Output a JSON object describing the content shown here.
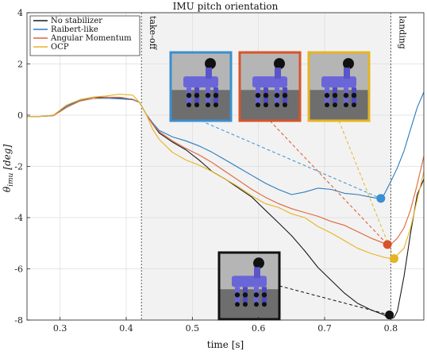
{
  "chart_data": {
    "type": "line",
    "title": "IMU pitch orientation",
    "xlabel": "time [s]",
    "ylabel": "θimu [deg]",
    "ylabel_main": "θ",
    "ylabel_sub": "imu",
    "ylabel_unit": "[deg]",
    "xlim": [
      0.25,
      0.85
    ],
    "ylim": [
      -8,
      4
    ],
    "xticks": [
      0.3,
      0.4,
      0.5,
      0.6,
      0.7,
      0.8
    ],
    "xtick_labels": [
      "0.3",
      "0.4",
      "0.5",
      "0.6",
      "0.7",
      "0.8"
    ],
    "yticks": [
      -8,
      -6,
      -4,
      -2,
      0,
      2,
      4
    ],
    "ytick_labels": [
      "-8",
      "-6",
      "-4",
      "-2",
      "0",
      "2",
      "4"
    ],
    "grid": true,
    "legend_position": "top-left",
    "flight_phase_shaded": true,
    "shaded_range": [
      0.423,
      0.8
    ],
    "events": [
      {
        "label": "take-off",
        "x": 0.423
      },
      {
        "label": "landing",
        "x": 0.8
      }
    ],
    "series": [
      {
        "name": "No stabilizer",
        "color": "#1a1a1a",
        "x": [
          0.25,
          0.27,
          0.29,
          0.31,
          0.33,
          0.35,
          0.37,
          0.39,
          0.41,
          0.42,
          0.43,
          0.44,
          0.45,
          0.47,
          0.49,
          0.51,
          0.53,
          0.55,
          0.57,
          0.59,
          0.61,
          0.63,
          0.65,
          0.67,
          0.69,
          0.71,
          0.73,
          0.75,
          0.77,
          0.79,
          0.795,
          0.8,
          0.805,
          0.81,
          0.82,
          0.83,
          0.84,
          0.85
        ],
        "y": [
          -0.05,
          -0.05,
          -0.02,
          0.35,
          0.6,
          0.7,
          0.7,
          0.68,
          0.62,
          0.5,
          0.05,
          -0.35,
          -0.7,
          -1.05,
          -1.35,
          -1.75,
          -2.2,
          -2.5,
          -2.85,
          -3.2,
          -3.7,
          -4.2,
          -4.7,
          -5.3,
          -5.95,
          -6.45,
          -6.95,
          -7.35,
          -7.6,
          -7.8,
          -7.9,
          -7.95,
          -7.9,
          -7.65,
          -6.3,
          -4.6,
          -3.1,
          -2.5
        ]
      },
      {
        "name": "Raibert-like",
        "color": "#2a7bbf",
        "x": [
          0.25,
          0.27,
          0.29,
          0.31,
          0.33,
          0.35,
          0.37,
          0.39,
          0.41,
          0.42,
          0.43,
          0.44,
          0.45,
          0.47,
          0.49,
          0.51,
          0.53,
          0.55,
          0.57,
          0.59,
          0.61,
          0.63,
          0.65,
          0.67,
          0.69,
          0.71,
          0.73,
          0.75,
          0.77,
          0.78,
          0.79,
          0.8,
          0.81,
          0.82,
          0.83,
          0.84,
          0.85
        ],
        "y": [
          -0.05,
          -0.05,
          0.0,
          0.35,
          0.58,
          0.65,
          0.66,
          0.64,
          0.6,
          0.5,
          0.05,
          -0.3,
          -0.6,
          -0.85,
          -1.0,
          -1.2,
          -1.45,
          -1.75,
          -2.05,
          -2.35,
          -2.65,
          -2.9,
          -3.1,
          -3.0,
          -2.85,
          -2.9,
          -3.05,
          -3.1,
          -3.2,
          -3.25,
          -3.1,
          -2.6,
          -2.05,
          -1.4,
          -0.55,
          0.3,
          0.9
        ]
      },
      {
        "name": "Angular Momentum",
        "color": "#e0653a",
        "x": [
          0.25,
          0.27,
          0.29,
          0.31,
          0.33,
          0.35,
          0.37,
          0.39,
          0.41,
          0.42,
          0.43,
          0.44,
          0.45,
          0.47,
          0.49,
          0.51,
          0.53,
          0.55,
          0.57,
          0.59,
          0.61,
          0.63,
          0.65,
          0.67,
          0.69,
          0.71,
          0.73,
          0.75,
          0.77,
          0.79,
          0.8,
          0.81,
          0.82,
          0.83,
          0.84,
          0.85
        ],
        "y": [
          -0.05,
          -0.05,
          -0.02,
          0.3,
          0.55,
          0.65,
          0.7,
          0.7,
          0.62,
          0.5,
          0.05,
          -0.35,
          -0.65,
          -1.0,
          -1.3,
          -1.55,
          -1.85,
          -2.2,
          -2.55,
          -2.9,
          -3.2,
          -3.45,
          -3.65,
          -3.8,
          -3.95,
          -4.15,
          -4.3,
          -4.55,
          -4.8,
          -5.0,
          -5.05,
          -4.8,
          -4.4,
          -3.7,
          -2.7,
          -1.6
        ]
      },
      {
        "name": "OCP",
        "color": "#e6b422",
        "x": [
          0.25,
          0.27,
          0.29,
          0.31,
          0.33,
          0.35,
          0.37,
          0.39,
          0.41,
          0.42,
          0.43,
          0.44,
          0.45,
          0.47,
          0.49,
          0.51,
          0.53,
          0.55,
          0.57,
          0.59,
          0.61,
          0.63,
          0.65,
          0.67,
          0.69,
          0.71,
          0.73,
          0.75,
          0.77,
          0.79,
          0.8,
          0.81,
          0.82,
          0.83,
          0.84,
          0.85
        ],
        "y": [
          -0.05,
          -0.05,
          0.0,
          0.4,
          0.6,
          0.7,
          0.75,
          0.82,
          0.78,
          0.5,
          0.05,
          -0.55,
          -0.95,
          -1.45,
          -1.75,
          -1.95,
          -2.2,
          -2.5,
          -2.8,
          -3.15,
          -3.45,
          -3.6,
          -3.85,
          -4.0,
          -4.35,
          -4.6,
          -4.9,
          -5.2,
          -5.4,
          -5.55,
          -5.6,
          -5.45,
          -5.2,
          -4.4,
          -3.3,
          -2.2
        ]
      }
    ],
    "markers": [
      {
        "series": "Raibert-like",
        "x": 0.785,
        "y": -3.25,
        "color": "#3a8fd0"
      },
      {
        "series": "Angular Momentum",
        "x": 0.795,
        "y": -5.05,
        "color": "#d9532a"
      },
      {
        "series": "OCP",
        "x": 0.805,
        "y": -5.6,
        "color": "#e6b422"
      },
      {
        "series": "No stabilizer",
        "x": 0.798,
        "y": -7.8,
        "color": "#111111"
      }
    ],
    "insets": [
      {
        "frame_color": "#3a8fd0",
        "marker_index": 0
      },
      {
        "frame_color": "#d9532a",
        "marker_index": 1
      },
      {
        "frame_color": "#e6b422",
        "marker_index": 2
      },
      {
        "frame_color": "#111111",
        "marker_index": 3
      }
    ]
  }
}
